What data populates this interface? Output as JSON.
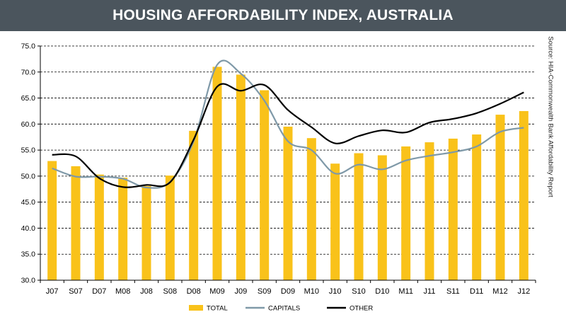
{
  "title": "HOUSING AFFORDABILITY INDEX, AUSTRALIA",
  "source": "Source: HIA-Commonwealth Bank Affordability Report",
  "colors": {
    "title_bg": "#4b555d",
    "total": "#f9c21a",
    "capitals": "#7f99a8",
    "other": "#000000"
  },
  "chart_data": {
    "type": "bar",
    "title": "HOUSING AFFORDABILITY INDEX, AUSTRALIA",
    "categories": [
      "J07",
      "S07",
      "D07",
      "M08",
      "J08",
      "S08",
      "D08",
      "M09",
      "J09",
      "S09",
      "D09",
      "M10",
      "J10",
      "S10",
      "D10",
      "M11",
      "J11",
      "S11",
      "D11",
      "M12",
      "J12"
    ],
    "ylim": [
      30.0,
      75.0
    ],
    "yticks": [
      "30.0",
      "35.0",
      "40.0",
      "45.0",
      "50.0",
      "55.0",
      "60.0",
      "65.0",
      "70.0",
      "75.0"
    ],
    "grid": true,
    "legend_position": "bottom",
    "series": [
      {
        "name": "TOTAL",
        "kind": "bar",
        "values": [
          52.9,
          51.9,
          50.3,
          49.7,
          48.1,
          50.1,
          58.7,
          71.0,
          69.5,
          66.5,
          59.5,
          57.3,
          52.4,
          54.4,
          54.0,
          55.7,
          56.5,
          57.2,
          58.0,
          61.8,
          62.5
        ]
      },
      {
        "name": "CAPITALS",
        "kind": "line",
        "values": [
          51.5,
          49.9,
          49.9,
          49.5,
          47.8,
          48.9,
          56.7,
          71.4,
          69.7,
          64.5,
          56.7,
          55.0,
          50.5,
          52.2,
          51.3,
          53.0,
          53.9,
          54.6,
          55.7,
          58.5,
          59.3
        ]
      },
      {
        "name": "OTHER",
        "kind": "line",
        "values": [
          54.1,
          53.8,
          49.6,
          47.9,
          48.3,
          48.8,
          57.0,
          67.2,
          66.4,
          67.5,
          62.7,
          59.4,
          56.3,
          57.7,
          58.8,
          58.4,
          60.3,
          61.0,
          62.1,
          63.9,
          66.1
        ]
      }
    ]
  }
}
